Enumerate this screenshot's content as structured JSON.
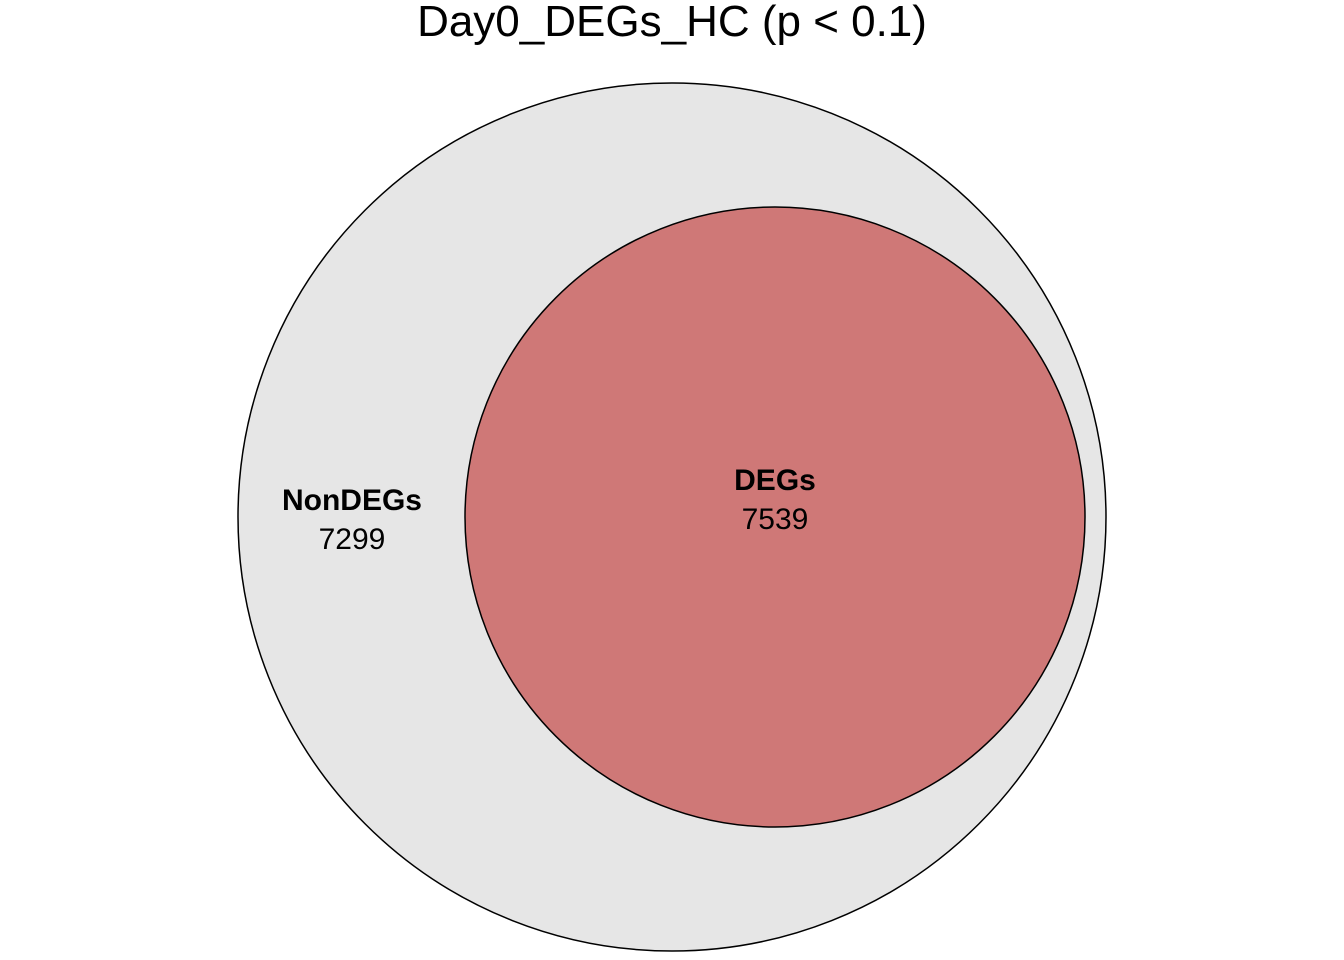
{
  "chart_data": {
    "type": "venn",
    "title": "Day0_DEGs_HC (p < 0.1)",
    "sets": [
      {
        "name": "NonDEGs",
        "count": "7299",
        "value": 7299,
        "role": "outer",
        "color": "#e6e6e6"
      },
      {
        "name": "DEGs",
        "count": "7539",
        "value": 7539,
        "role": "inner",
        "color": "#cf7877"
      }
    ],
    "stroke_color": "#000000",
    "legend": "none",
    "grid": false
  }
}
